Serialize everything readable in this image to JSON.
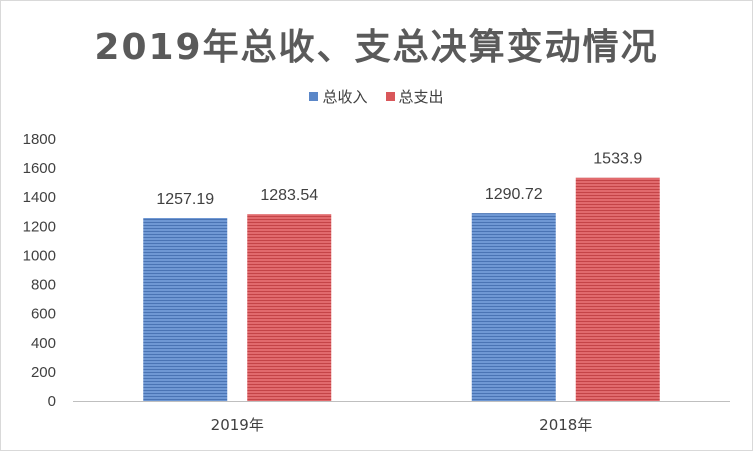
{
  "chart_data": {
    "type": "bar",
    "title": "2019年总收、支总决算变动情况",
    "categories": [
      "2019年",
      "2018年"
    ],
    "series": [
      {
        "name": "总收入",
        "values": [
          1257.19,
          1290.72
        ],
        "labels": [
          "1257.19",
          "1290.72"
        ],
        "color": "#5b87c8"
      },
      {
        "name": "总支出",
        "values": [
          1283.54,
          1533.9
        ],
        "labels": [
          "1283.54",
          "1533.9"
        ],
        "color": "#d9575a"
      }
    ],
    "ylim": [
      0,
      1800
    ],
    "yticks": [
      "0",
      "200",
      "400",
      "600",
      "800",
      "1000",
      "1200",
      "1400",
      "1600",
      "1800"
    ],
    "xlabel": "",
    "ylabel": "",
    "grid": false,
    "legend_position": "top"
  }
}
